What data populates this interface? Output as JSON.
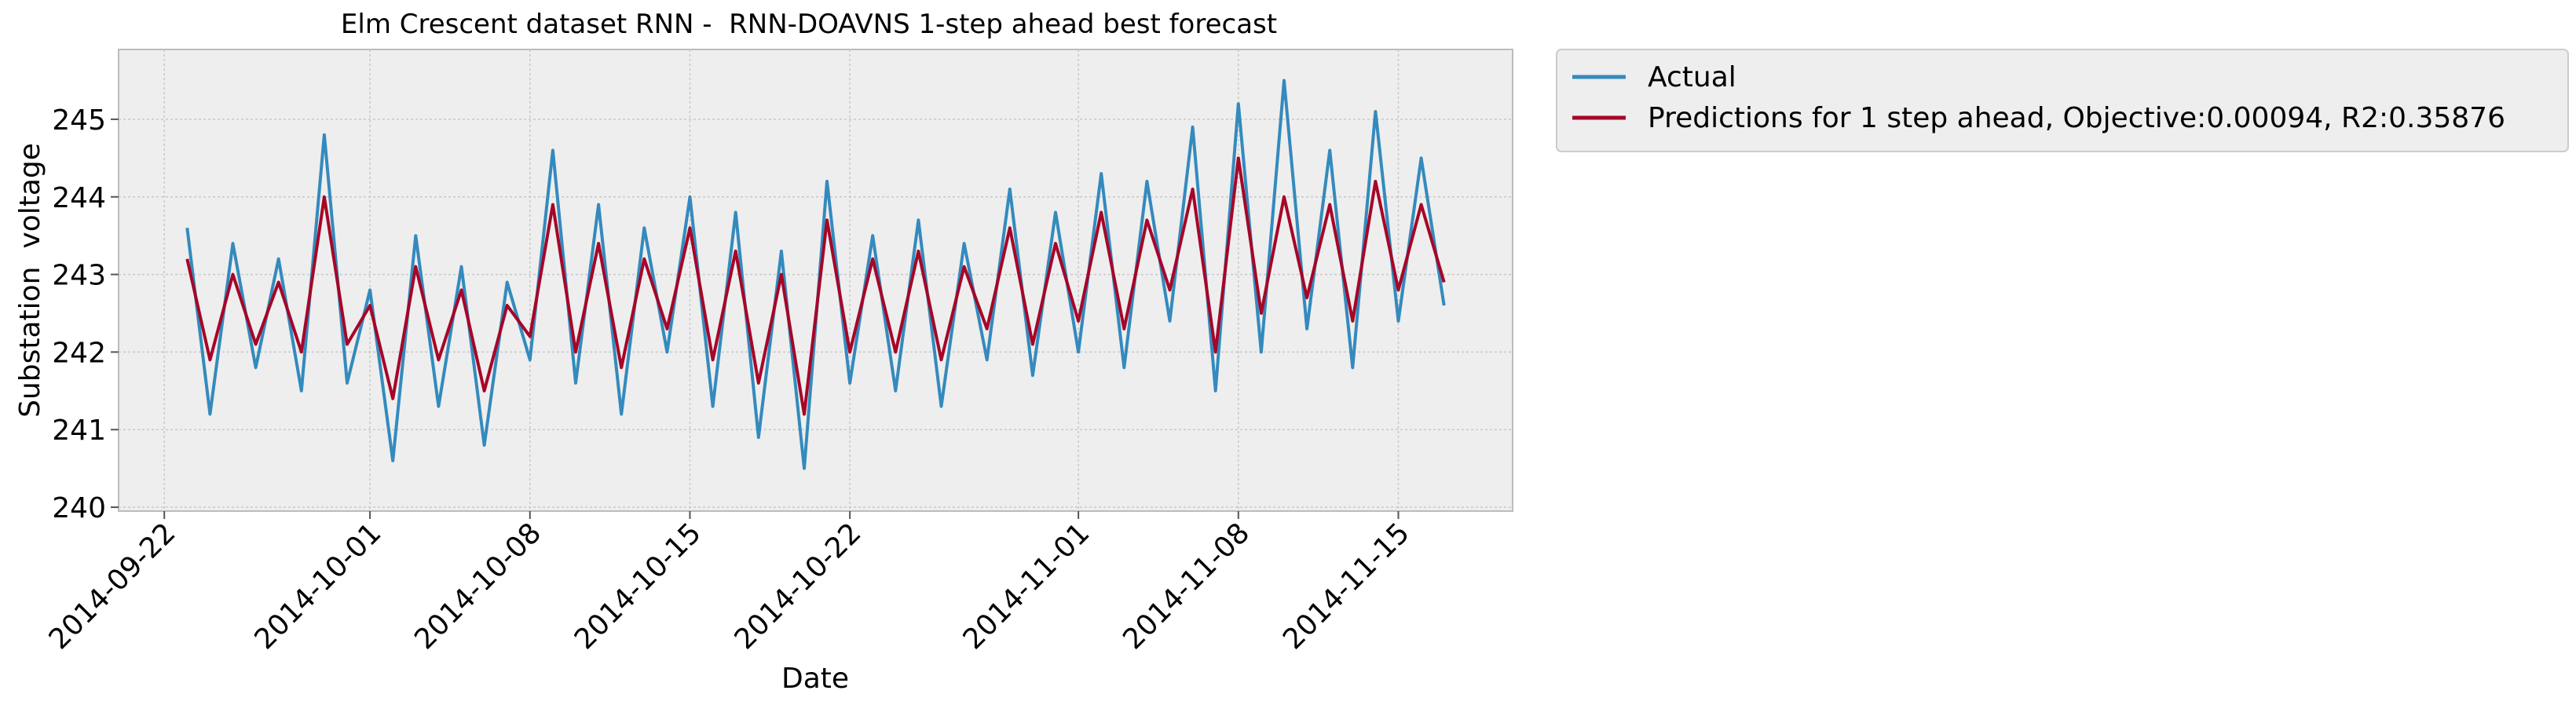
{
  "chart_data": {
    "type": "line",
    "title": "Elm Crescent dataset RNN -  RNN-DOAVNS 1-step ahead best forecast",
    "x_label": "Date",
    "y_label": "Substation  voltage",
    "x": [
      "2014-09-23",
      "2014-09-24",
      "2014-09-25",
      "2014-09-26",
      "2014-09-27",
      "2014-09-28",
      "2014-09-29",
      "2014-09-30",
      "2014-10-01",
      "2014-10-02",
      "2014-10-03",
      "2014-10-04",
      "2014-10-05",
      "2014-10-06",
      "2014-10-07",
      "2014-10-08",
      "2014-10-09",
      "2014-10-10",
      "2014-10-11",
      "2014-10-12",
      "2014-10-13",
      "2014-10-14",
      "2014-10-15",
      "2014-10-16",
      "2014-10-17",
      "2014-10-18",
      "2014-10-19",
      "2014-10-20",
      "2014-10-21",
      "2014-10-22",
      "2014-10-23",
      "2014-10-24",
      "2014-10-25",
      "2014-10-26",
      "2014-10-27",
      "2014-10-28",
      "2014-10-29",
      "2014-10-30",
      "2014-10-31",
      "2014-11-01",
      "2014-11-02",
      "2014-11-03",
      "2014-11-04",
      "2014-11-05",
      "2014-11-06",
      "2014-11-07",
      "2014-11-08",
      "2014-11-09",
      "2014-11-10",
      "2014-11-11",
      "2014-11-12",
      "2014-11-13",
      "2014-11-14",
      "2014-11-15",
      "2014-11-16",
      "2014-11-17"
    ],
    "series": [
      {
        "name": "Actual",
        "color": "#348abd",
        "values": [
          243.6,
          241.2,
          243.4,
          241.8,
          243.2,
          241.5,
          244.8,
          241.6,
          242.8,
          240.6,
          243.5,
          241.3,
          243.1,
          240.8,
          242.9,
          241.9,
          244.6,
          241.6,
          243.9,
          241.2,
          243.6,
          242.0,
          244.0,
          241.3,
          243.8,
          240.9,
          243.3,
          240.5,
          244.2,
          241.6,
          243.5,
          241.5,
          243.7,
          241.3,
          243.4,
          241.9,
          244.1,
          241.7,
          243.8,
          242.0,
          244.3,
          241.8,
          244.2,
          242.4,
          244.9,
          241.5,
          245.2,
          242.0,
          245.5,
          242.3,
          244.6,
          241.8,
          245.1,
          242.4,
          244.5,
          242.6
        ]
      },
      {
        "name": "Predictions for 1 step ahead, Objective:0.00094, R2:0.35876",
        "color": "#a60628",
        "values": [
          243.2,
          241.9,
          243.0,
          242.1,
          242.9,
          242.0,
          244.0,
          242.1,
          242.6,
          241.4,
          243.1,
          241.9,
          242.8,
          241.5,
          242.6,
          242.2,
          243.9,
          242.0,
          243.4,
          241.8,
          243.2,
          242.3,
          243.6,
          241.9,
          243.3,
          241.6,
          243.0,
          241.2,
          243.7,
          242.0,
          243.2,
          242.0,
          243.3,
          241.9,
          243.1,
          242.3,
          243.6,
          242.1,
          243.4,
          242.4,
          243.8,
          242.3,
          243.7,
          242.8,
          244.1,
          242.0,
          244.5,
          242.5,
          244.0,
          242.7,
          243.9,
          242.4,
          244.2,
          242.8,
          243.9,
          242.9
        ]
      }
    ],
    "xlim": [
      "2014-09-20",
      "2014-11-20"
    ],
    "xticks": [
      "2014-09-22",
      "2014-10-01",
      "2014-10-08",
      "2014-10-15",
      "2014-10-22",
      "2014-11-01",
      "2014-11-08",
      "2014-11-15"
    ],
    "ylim": [
      239.95,
      245.9
    ],
    "yticks": [
      240,
      241,
      242,
      243,
      244,
      245
    ],
    "grid": true,
    "legend": "outside-upper-right"
  }
}
